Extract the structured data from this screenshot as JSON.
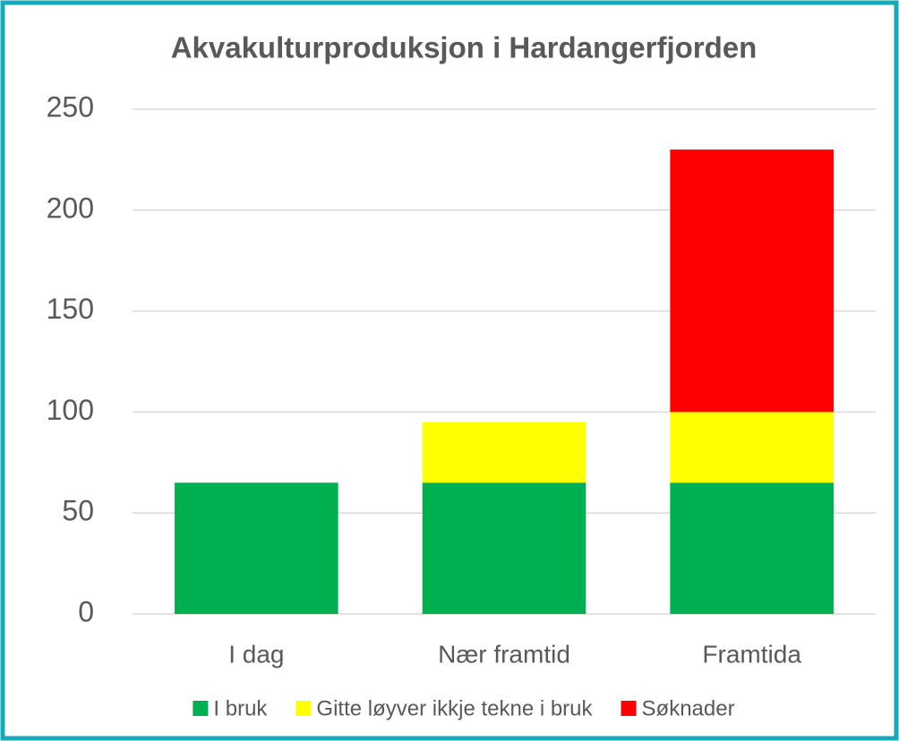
{
  "chart_data": {
    "type": "stacked_bar",
    "title": "Akvakulturproduksjon i Hardangerfjorden",
    "categories": [
      "I dag",
      "Nær framtid",
      "Framtida"
    ],
    "series": [
      {
        "name": "I bruk",
        "color": "#00b050",
        "values": [
          65,
          65,
          65
        ]
      },
      {
        "name": "Gitte løyver ikkje tekne i bruk",
        "color": "#ffff00",
        "values": [
          0,
          30,
          35
        ]
      },
      {
        "name": "Søknader",
        "color": "#ff0000",
        "values": [
          0,
          0,
          130
        ]
      }
    ],
    "ylim": [
      0,
      250
    ],
    "yticks": [
      0,
      50,
      100,
      150,
      200,
      250
    ],
    "grid": true,
    "legend": "bottom"
  }
}
